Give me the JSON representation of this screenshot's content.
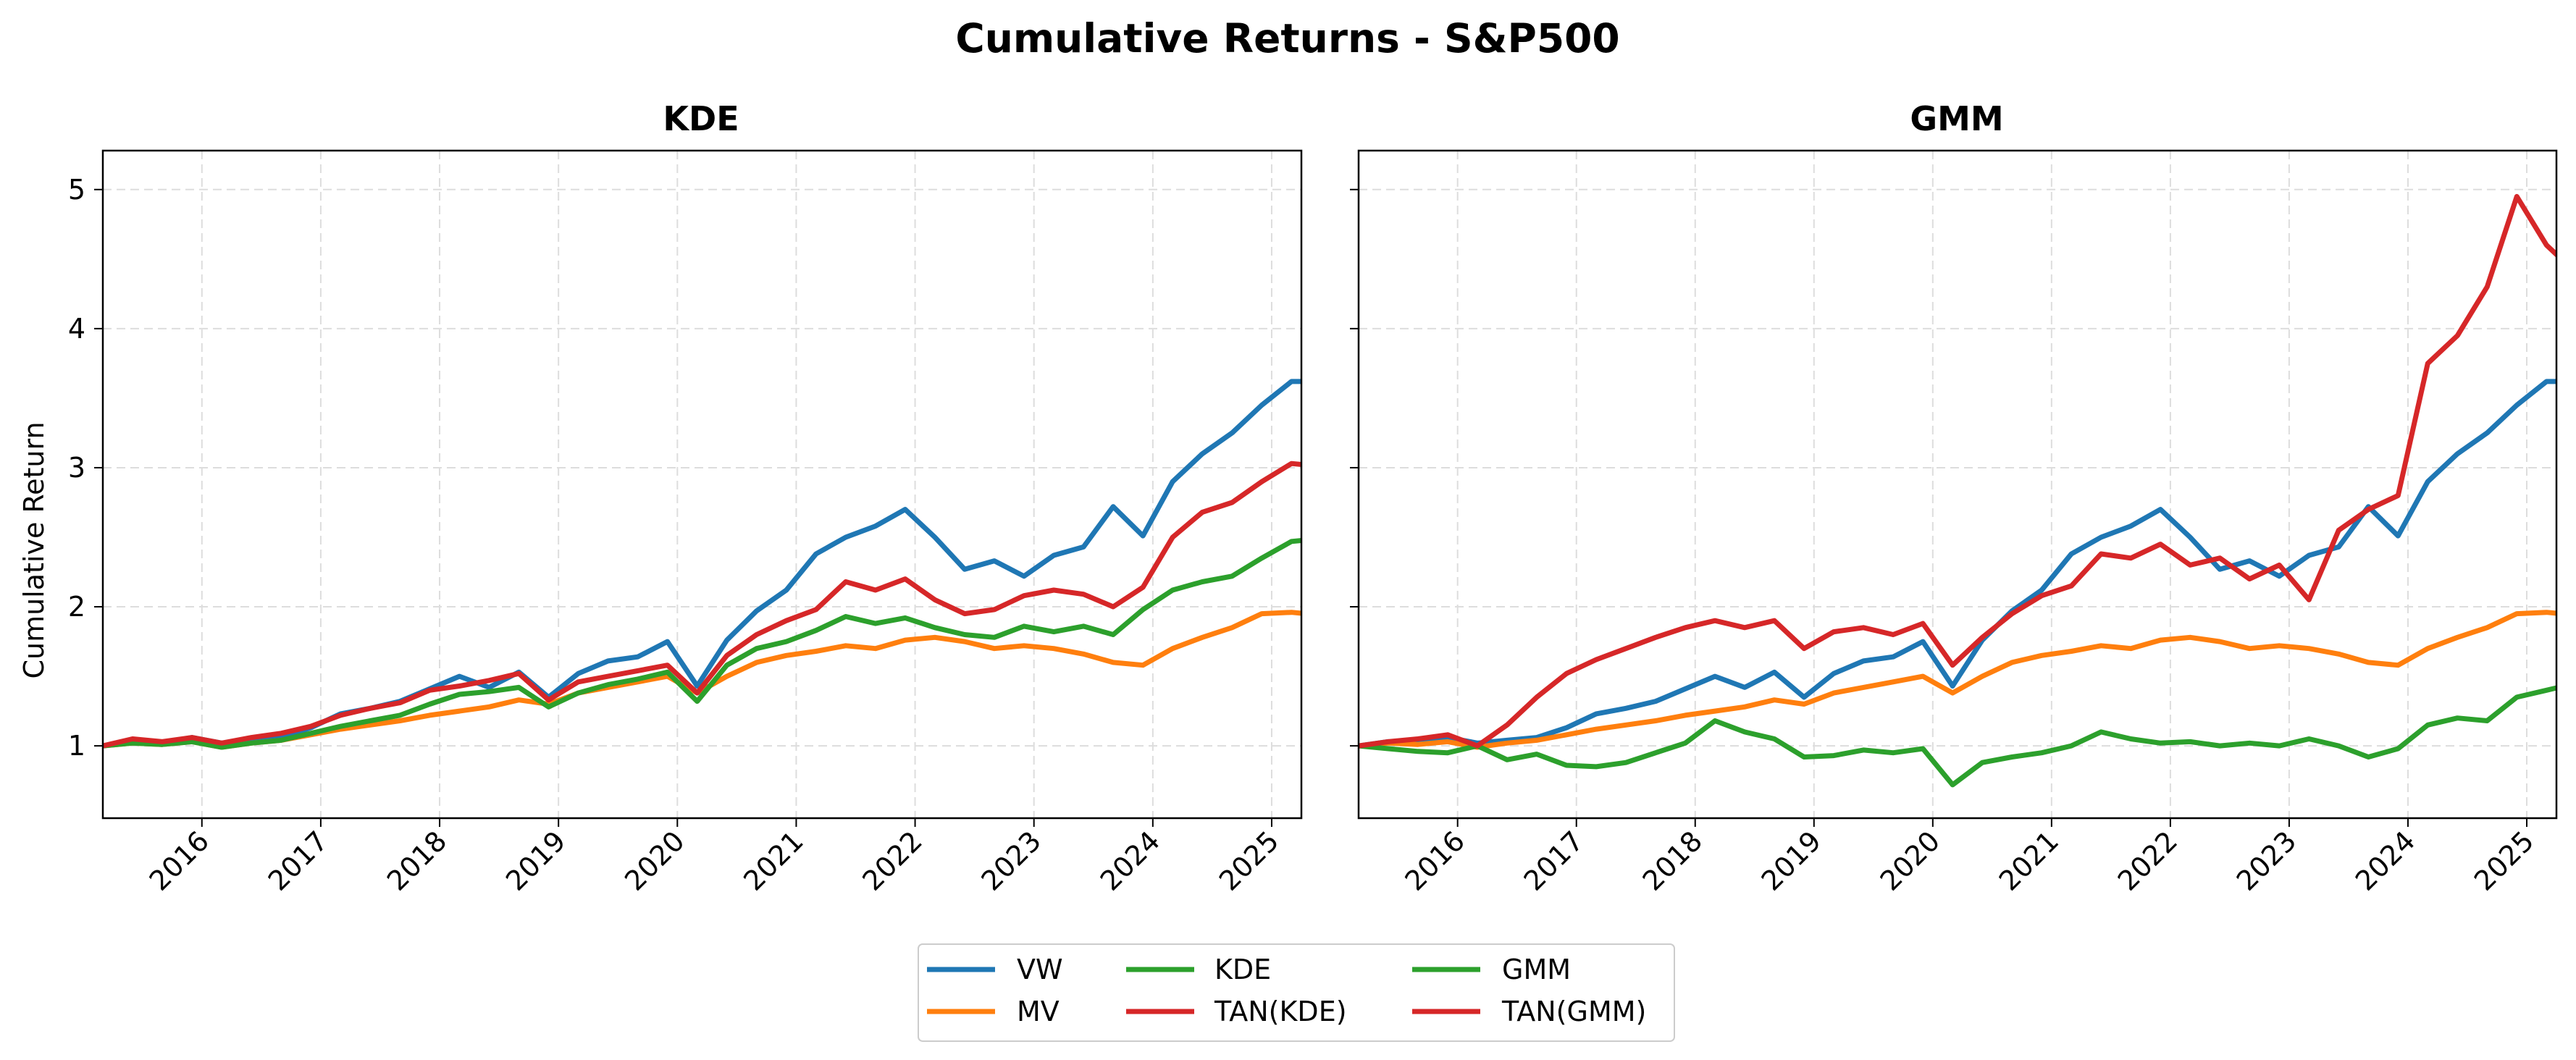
{
  "figure": {
    "title": "Cumulative Returns - S&P500",
    "ylabel": "Cumulative Return"
  },
  "legend": {
    "location": "bottom-center",
    "ncol": 3,
    "entries": [
      {
        "label": "VW",
        "color": "#1f77b4"
      },
      {
        "label": "MV",
        "color": "#ff7f0e"
      },
      {
        "label": "KDE",
        "color": "#2ca02c"
      },
      {
        "label": "TAN(KDE)",
        "color": "#d62728"
      },
      {
        "label": "GMM",
        "color": "#2ca02c"
      },
      {
        "label": "TAN(GMM)",
        "color": "#d62728"
      }
    ]
  },
  "chart_data": [
    {
      "type": "line",
      "title": "KDE",
      "xlabel": "",
      "ylabel": "Cumulative Return",
      "x_tick_labels": [
        "2016",
        "2017",
        "2018",
        "2019",
        "2020",
        "2021",
        "2022",
        "2023",
        "2024",
        "2025"
      ],
      "y_ticks": [
        1,
        2,
        3,
        4,
        5
      ],
      "xlim": [
        "2015-03",
        "2025-04"
      ],
      "ylim": [
        0.48,
        5.28
      ],
      "grid": true,
      "x_step": "quarterly",
      "x_start": "2015-03",
      "series": [
        {
          "name": "VW",
          "color": "#1f77b4",
          "values": [
            1.0,
            1.03,
            1.02,
            1.06,
            1.02,
            1.04,
            1.06,
            1.13,
            1.23,
            1.27,
            1.32,
            1.41,
            1.5,
            1.42,
            1.53,
            1.35,
            1.52,
            1.61,
            1.64,
            1.75,
            1.43,
            1.76,
            1.97,
            2.12,
            2.38,
            2.5,
            2.58,
            2.7,
            2.5,
            2.27,
            2.33,
            2.22,
            2.37,
            2.43,
            2.72,
            2.51,
            2.9,
            3.1,
            3.25,
            3.45,
            3.62,
            3.62,
            3.42
          ]
        },
        {
          "name": "MV",
          "color": "#ff7f0e",
          "values": [
            1.0,
            1.02,
            1.01,
            1.03,
            0.99,
            1.02,
            1.04,
            1.08,
            1.12,
            1.15,
            1.18,
            1.22,
            1.25,
            1.28,
            1.33,
            1.3,
            1.38,
            1.42,
            1.46,
            1.5,
            1.38,
            1.5,
            1.6,
            1.65,
            1.68,
            1.72,
            1.7,
            1.76,
            1.78,
            1.75,
            1.7,
            1.72,
            1.7,
            1.66,
            1.6,
            1.58,
            1.7,
            1.78,
            1.85,
            1.95,
            1.96,
            1.94,
            1.96
          ]
        },
        {
          "name": "KDE",
          "color": "#2ca02c",
          "values": [
            1.0,
            1.02,
            1.01,
            1.03,
            0.99,
            1.02,
            1.04,
            1.09,
            1.14,
            1.18,
            1.22,
            1.3,
            1.37,
            1.39,
            1.42,
            1.28,
            1.38,
            1.44,
            1.48,
            1.53,
            1.32,
            1.58,
            1.7,
            1.75,
            1.83,
            1.93,
            1.88,
            1.92,
            1.85,
            1.8,
            1.78,
            1.86,
            1.82,
            1.86,
            1.8,
            1.98,
            2.12,
            2.18,
            2.22,
            2.35,
            2.47,
            2.49,
            2.43
          ]
        },
        {
          "name": "TAN(KDE)",
          "color": "#d62728",
          "values": [
            1.0,
            1.05,
            1.03,
            1.06,
            1.02,
            1.06,
            1.09,
            1.14,
            1.22,
            1.27,
            1.31,
            1.4,
            1.43,
            1.47,
            1.52,
            1.33,
            1.46,
            1.5,
            1.54,
            1.58,
            1.38,
            1.65,
            1.8,
            1.9,
            1.98,
            2.18,
            2.12,
            2.2,
            2.05,
            1.95,
            1.98,
            2.08,
            2.12,
            2.09,
            2.0,
            2.14,
            2.5,
            2.68,
            2.75,
            2.9,
            3.03,
            3.01,
            2.95
          ]
        }
      ]
    },
    {
      "type": "line",
      "title": "GMM",
      "xlabel": "",
      "ylabel": "",
      "x_tick_labels": [
        "2016",
        "2017",
        "2018",
        "2019",
        "2020",
        "2021",
        "2022",
        "2023",
        "2024",
        "2025"
      ],
      "y_ticks": [
        1,
        2,
        3,
        4,
        5
      ],
      "xlim": [
        "2015-03",
        "2025-04"
      ],
      "ylim": [
        0.48,
        5.28
      ],
      "grid": true,
      "x_step": "quarterly",
      "x_start": "2015-03",
      "series": [
        {
          "name": "VW",
          "color": "#1f77b4",
          "values": [
            1.0,
            1.03,
            1.02,
            1.06,
            1.02,
            1.04,
            1.06,
            1.13,
            1.23,
            1.27,
            1.32,
            1.41,
            1.5,
            1.42,
            1.53,
            1.35,
            1.52,
            1.61,
            1.64,
            1.75,
            1.43,
            1.76,
            1.97,
            2.12,
            2.38,
            2.5,
            2.58,
            2.7,
            2.5,
            2.27,
            2.33,
            2.22,
            2.37,
            2.43,
            2.72,
            2.51,
            2.9,
            3.1,
            3.25,
            3.45,
            3.62,
            3.62,
            3.42
          ]
        },
        {
          "name": "MV",
          "color": "#ff7f0e",
          "values": [
            1.0,
            1.02,
            1.01,
            1.03,
            0.99,
            1.02,
            1.04,
            1.08,
            1.12,
            1.15,
            1.18,
            1.22,
            1.25,
            1.28,
            1.33,
            1.3,
            1.38,
            1.42,
            1.46,
            1.5,
            1.38,
            1.5,
            1.6,
            1.65,
            1.68,
            1.72,
            1.7,
            1.76,
            1.78,
            1.75,
            1.7,
            1.72,
            1.7,
            1.66,
            1.6,
            1.58,
            1.7,
            1.78,
            1.85,
            1.95,
            1.96,
            1.94,
            1.96
          ]
        },
        {
          "name": "GMM",
          "color": "#2ca02c",
          "values": [
            1.0,
            0.98,
            0.96,
            0.95,
            1.0,
            0.9,
            0.94,
            0.86,
            0.85,
            0.88,
            0.95,
            1.02,
            1.18,
            1.1,
            1.05,
            0.92,
            0.93,
            0.97,
            0.95,
            0.98,
            0.72,
            0.88,
            0.92,
            0.95,
            1.0,
            1.1,
            1.05,
            1.02,
            1.03,
            1.0,
            1.02,
            1.0,
            1.05,
            1.0,
            0.92,
            0.98,
            1.15,
            1.2,
            1.18,
            1.35,
            1.4,
            1.45,
            1.38
          ]
        },
        {
          "name": "TAN(GMM)",
          "color": "#d62728",
          "values": [
            1.0,
            1.03,
            1.05,
            1.08,
            1.0,
            1.15,
            1.35,
            1.52,
            1.62,
            1.7,
            1.78,
            1.85,
            1.9,
            1.85,
            1.9,
            1.7,
            1.82,
            1.85,
            1.8,
            1.88,
            1.58,
            1.78,
            1.95,
            2.08,
            2.15,
            2.38,
            2.35,
            2.45,
            2.3,
            2.35,
            2.2,
            2.3,
            2.05,
            2.55,
            2.7,
            2.8,
            3.75,
            3.95,
            4.3,
            4.95,
            4.6,
            4.4,
            4.35
          ]
        }
      ]
    }
  ]
}
